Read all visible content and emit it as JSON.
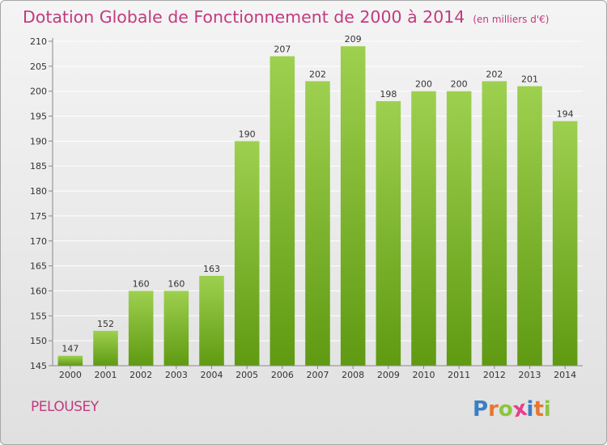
{
  "title": "Dotation Globale de Fonctionnement de 2000 à 2014",
  "unit_note": "(en milliers d'€)",
  "commune": "PELOUSEY",
  "logo": {
    "text": "Proxiti",
    "letters": [
      "P",
      "r",
      "o",
      "x",
      "i",
      "t",
      "i"
    ],
    "colors": [
      "#3a7fc4",
      "#e8772e",
      "#8cc63f",
      "#e83e8c",
      "#3a7fc4",
      "#e8772e",
      "#8cc63f"
    ]
  },
  "colors": {
    "title": "#c23a80",
    "bar_light": "#9ed04f",
    "bar_dark": "#5f9a12",
    "grid": "#ffffff"
  },
  "chart_data": {
    "type": "bar",
    "title": "Dotation Globale de Fonctionnement de 2000 à 2014",
    "subtitle": "(en milliers d'€)",
    "xlabel": "",
    "ylabel": "",
    "categories": [
      "2000",
      "2001",
      "2002",
      "2003",
      "2004",
      "2005",
      "2006",
      "2007",
      "2008",
      "2009",
      "2010",
      "2011",
      "2012",
      "2013",
      "2014"
    ],
    "values": [
      147,
      152,
      160,
      160,
      163,
      190,
      207,
      202,
      209,
      198,
      200,
      200,
      202,
      201,
      194
    ],
    "ylim": [
      145,
      210
    ],
    "yticks": [
      145,
      150,
      155,
      160,
      165,
      170,
      175,
      180,
      185,
      190,
      195,
      200,
      205,
      210
    ],
    "grid": true,
    "data_labels": true
  }
}
